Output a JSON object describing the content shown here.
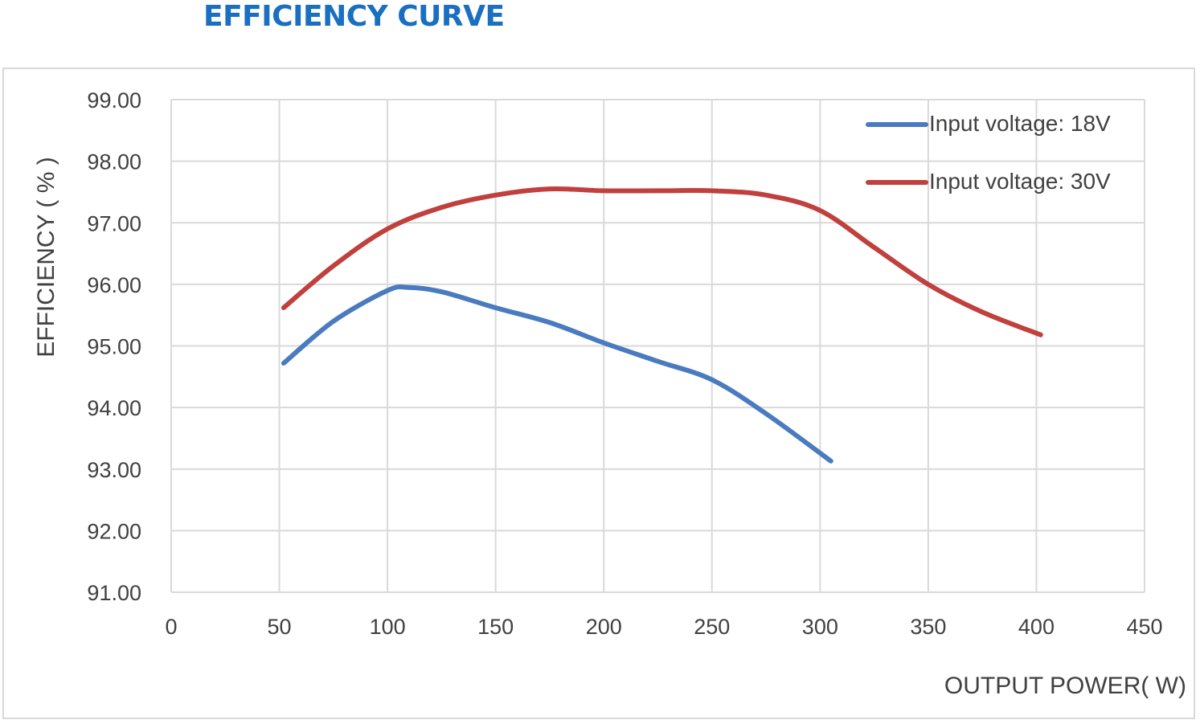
{
  "title": "EFFICIENCY CURVE",
  "colors": {
    "title": "#1a6fc1",
    "series_18v": "#4a7bbf",
    "series_30v": "#c0403e",
    "grid": "#d9d9d9",
    "text": "#404040"
  },
  "chart_data": {
    "type": "line",
    "title": "EFFICIENCY CURVE",
    "xlabel": "OUTPUT POWER( W)",
    "ylabel": "EFFICIENCY ( % )",
    "xlim": [
      0,
      450
    ],
    "ylim": [
      91,
      99
    ],
    "x_ticks": [
      "0",
      "50",
      "100",
      "150",
      "200",
      "250",
      "300",
      "350",
      "400",
      "450"
    ],
    "y_ticks": [
      "91.00",
      "92.00",
      "93.00",
      "94.00",
      "95.00",
      "96.00",
      "97.00",
      "98.00",
      "99.00"
    ],
    "grid": true,
    "legend_position": "top-right",
    "series": [
      {
        "name": "Input voltage: 18V",
        "x": [
          52,
          75,
          100,
          110,
          125,
          150,
          175,
          200,
          225,
          250,
          275,
          305
        ],
        "y": [
          94.72,
          95.4,
          95.9,
          95.95,
          95.88,
          95.62,
          95.38,
          95.05,
          94.75,
          94.45,
          93.9,
          93.13
        ]
      },
      {
        "name": "Input voltage: 30V",
        "x": [
          52,
          75,
          100,
          125,
          150,
          175,
          200,
          225,
          250,
          275,
          300,
          325,
          350,
          375,
          402
        ],
        "y": [
          95.62,
          96.3,
          96.9,
          97.25,
          97.45,
          97.55,
          97.52,
          97.52,
          97.52,
          97.45,
          97.2,
          96.6,
          96.0,
          95.55,
          95.18
        ]
      }
    ]
  }
}
